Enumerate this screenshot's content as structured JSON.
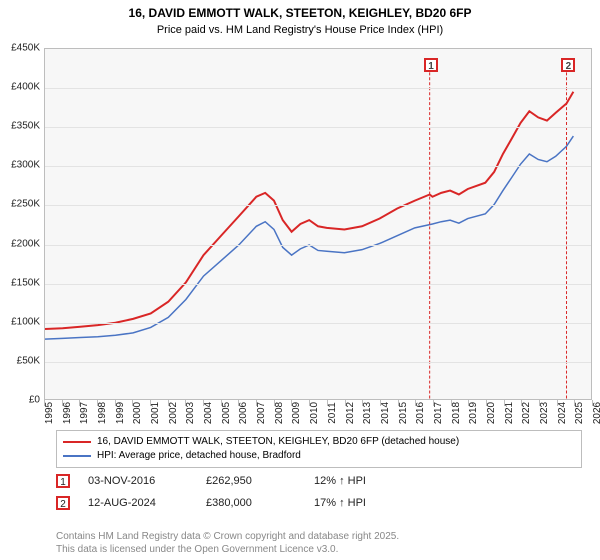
{
  "title_line1": "16, DAVID EMMOTT WALK, STEETON, KEIGHLEY, BD20 6FP",
  "title_line2": "Price paid vs. HM Land Registry's House Price Index (HPI)",
  "chart": {
    "type": "line",
    "background_color": "#f7f7f7",
    "grid_color": "#e3e3e3",
    "border_color": "#bdbdbd",
    "x_years": [
      1995,
      1996,
      1997,
      1998,
      1999,
      2000,
      2001,
      2002,
      2003,
      2004,
      2005,
      2006,
      2007,
      2008,
      2009,
      2010,
      2011,
      2012,
      2013,
      2014,
      2015,
      2016,
      2017,
      2018,
      2019,
      2020,
      2021,
      2022,
      2023,
      2024,
      2025,
      2026
    ],
    "xlim": [
      1995,
      2026
    ],
    "ylim": [
      0,
      450000
    ],
    "ytick_step": 50000,
    "ytick_labels": [
      "£0",
      "£50K",
      "£100K",
      "£150K",
      "£200K",
      "£250K",
      "£300K",
      "£350K",
      "£400K",
      "£450K"
    ],
    "series": [
      {
        "name": "16, DAVID EMMOTT WALK, STEETON, KEIGHLEY, BD20 6FP (detached house)",
        "color": "#d92626",
        "line_width": 2,
        "points": [
          [
            1995,
            90000
          ],
          [
            1996,
            91000
          ],
          [
            1997,
            93000
          ],
          [
            1998,
            95000
          ],
          [
            1999,
            98000
          ],
          [
            2000,
            103000
          ],
          [
            2001,
            110000
          ],
          [
            2002,
            125000
          ],
          [
            2003,
            150000
          ],
          [
            2004,
            185000
          ],
          [
            2005,
            210000
          ],
          [
            2006,
            235000
          ],
          [
            2007,
            260000
          ],
          [
            2007.5,
            265000
          ],
          [
            2008,
            255000
          ],
          [
            2008.5,
            230000
          ],
          [
            2009,
            215000
          ],
          [
            2009.5,
            225000
          ],
          [
            2010,
            230000
          ],
          [
            2010.5,
            222000
          ],
          [
            2011,
            220000
          ],
          [
            2012,
            218000
          ],
          [
            2013,
            222000
          ],
          [
            2014,
            232000
          ],
          [
            2015,
            245000
          ],
          [
            2016,
            255000
          ],
          [
            2016.84,
            262950
          ],
          [
            2017,
            260000
          ],
          [
            2017.5,
            265000
          ],
          [
            2018,
            268000
          ],
          [
            2018.5,
            263000
          ],
          [
            2019,
            270000
          ],
          [
            2020,
            278000
          ],
          [
            2020.5,
            292000
          ],
          [
            2021,
            315000
          ],
          [
            2021.5,
            335000
          ],
          [
            2022,
            355000
          ],
          [
            2022.5,
            370000
          ],
          [
            2023,
            362000
          ],
          [
            2023.5,
            358000
          ],
          [
            2024,
            368000
          ],
          [
            2024.61,
            380000
          ],
          [
            2025,
            395000
          ]
        ]
      },
      {
        "name": "HPI: Average price, detached house, Bradford",
        "color": "#4a74c4",
        "line_width": 1.5,
        "points": [
          [
            1995,
            77000
          ],
          [
            1996,
            78000
          ],
          [
            1997,
            79000
          ],
          [
            1998,
            80000
          ],
          [
            1999,
            82000
          ],
          [
            2000,
            85000
          ],
          [
            2001,
            92000
          ],
          [
            2002,
            105000
          ],
          [
            2003,
            128000
          ],
          [
            2004,
            158000
          ],
          [
            2005,
            178000
          ],
          [
            2006,
            198000
          ],
          [
            2007,
            222000
          ],
          [
            2007.5,
            228000
          ],
          [
            2008,
            218000
          ],
          [
            2008.5,
            195000
          ],
          [
            2009,
            185000
          ],
          [
            2009.5,
            193000
          ],
          [
            2010,
            198000
          ],
          [
            2010.5,
            191000
          ],
          [
            2011,
            190000
          ],
          [
            2012,
            188000
          ],
          [
            2013,
            192000
          ],
          [
            2014,
            200000
          ],
          [
            2015,
            210000
          ],
          [
            2016,
            220000
          ],
          [
            2017,
            225000
          ],
          [
            2017.5,
            228000
          ],
          [
            2018,
            230000
          ],
          [
            2018.5,
            226000
          ],
          [
            2019,
            232000
          ],
          [
            2020,
            238000
          ],
          [
            2020.5,
            250000
          ],
          [
            2021,
            268000
          ],
          [
            2021.5,
            285000
          ],
          [
            2022,
            302000
          ],
          [
            2022.5,
            315000
          ],
          [
            2023,
            308000
          ],
          [
            2023.5,
            305000
          ],
          [
            2024,
            312000
          ],
          [
            2024.61,
            325000
          ],
          [
            2025,
            338000
          ]
        ]
      }
    ],
    "sale_markers": [
      {
        "n": "1",
        "year": 2016.84,
        "top_y": 420000,
        "color": "#d92626"
      },
      {
        "n": "2",
        "year": 2024.61,
        "top_y": 420000,
        "color": "#d92626"
      }
    ]
  },
  "legend": [
    {
      "label": "16, DAVID EMMOTT WALK, STEETON, KEIGHLEY, BD20 6FP (detached house)",
      "color": "#d92626"
    },
    {
      "label": "HPI: Average price, detached house, Bradford",
      "color": "#4a74c4"
    }
  ],
  "sales": [
    {
      "n": "1",
      "date": "03-NOV-2016",
      "price": "£262,950",
      "pct": "12% ↑ HPI",
      "color": "#d92626"
    },
    {
      "n": "2",
      "date": "12-AUG-2024",
      "price": "£380,000",
      "pct": "17% ↑ HPI",
      "color": "#d92626"
    }
  ],
  "footer_line1": "Contains HM Land Registry data © Crown copyright and database right 2025.",
  "footer_line2": "This data is licensed under the Open Government Licence v3.0.",
  "text_color": "#222222",
  "footer_color": "#888888"
}
